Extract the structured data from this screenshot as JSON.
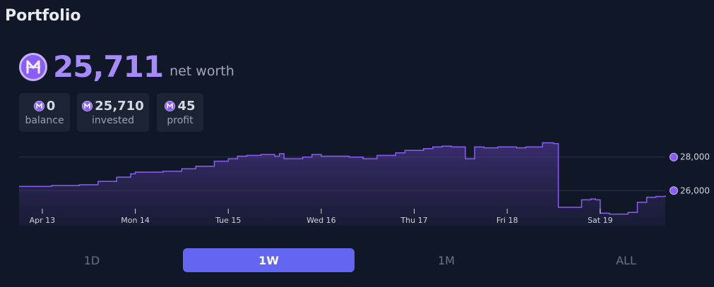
{
  "header": {
    "title": "Portfolio"
  },
  "net_worth": {
    "value": "25,711",
    "label": "net worth",
    "icon": "mana-coin-icon"
  },
  "stats": [
    {
      "value": "0",
      "label": "balance"
    },
    {
      "value": "25,710",
      "label": "invested"
    },
    {
      "value": "45",
      "label": "profit"
    }
  ],
  "timeframes": [
    {
      "label": "1D",
      "active": false
    },
    {
      "label": "1W",
      "active": true
    },
    {
      "label": "1M",
      "active": false
    },
    {
      "label": "ALL",
      "active": false
    }
  ],
  "colors": {
    "accent": "#8b5cf6",
    "line": "#8b5cf6",
    "active_tab": "#6366f1",
    "background": "#101827"
  },
  "chart_data": {
    "type": "area",
    "title": "",
    "xlabel": "",
    "ylabel": "",
    "grid": true,
    "y_ticks": [
      28000,
      26000
    ],
    "y_tick_labels": [
      "28,000",
      "26,000"
    ],
    "ylim": [
      24750,
      29375
    ],
    "x_tick_labels": [
      "Apr 13",
      "Mon 14",
      "Tue 15",
      "Wed 16",
      "Thu 17",
      "Fri 18",
      "Sat 19"
    ],
    "x_ticks": [
      0,
      1,
      2,
      3,
      4,
      5,
      6
    ],
    "xlim": [
      -0.25,
      6.7
    ],
    "series": [
      {
        "x": [
          -0.25,
          0.1,
          0.4,
          0.6,
          0.8,
          0.95,
          1.0,
          1.3,
          1.5,
          1.65,
          1.85,
          2.0,
          2.1,
          2.2,
          2.35,
          2.5,
          2.55,
          2.6,
          2.8,
          2.9,
          3.0,
          3.15,
          3.3,
          3.45,
          3.6,
          3.8,
          3.9,
          4.1,
          4.2,
          4.3,
          4.4,
          4.5,
          4.55,
          4.65,
          4.75,
          4.9,
          5.0,
          5.1,
          5.2,
          5.3,
          5.38,
          5.45,
          5.5,
          5.55,
          5.8,
          5.9,
          5.95,
          6.0,
          6.1,
          6.2,
          6.3,
          6.4,
          6.5,
          6.6,
          6.7
        ],
        "values": [
          26250,
          26300,
          26350,
          26550,
          26800,
          27000,
          27100,
          27150,
          27300,
          27450,
          27750,
          27900,
          28050,
          28100,
          28150,
          28050,
          28200,
          27900,
          28000,
          28150,
          28050,
          28050,
          28000,
          27900,
          28100,
          28250,
          28400,
          28500,
          28600,
          28650,
          28600,
          28600,
          27900,
          28600,
          28550,
          28600,
          28600,
          28550,
          28600,
          28600,
          28850,
          28850,
          28800,
          25000,
          25450,
          25500,
          25450,
          24650,
          24600,
          24600,
          24700,
          25300,
          25600,
          25650,
          25700
        ]
      }
    ]
  }
}
